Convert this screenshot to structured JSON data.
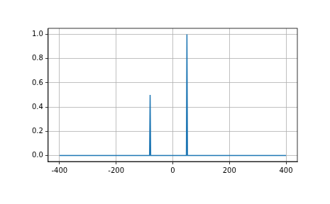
{
  "chart_data": {
    "type": "line",
    "x": [
      -400,
      -82,
      -80,
      -78,
      48,
      50,
      52,
      400
    ],
    "values": [
      0,
      0,
      0.5,
      0,
      0,
      1.0,
      0,
      0
    ],
    "color": "#1f77b4",
    "xlim": [
      -440,
      440
    ],
    "xticks": [
      -400,
      -200,
      0,
      200,
      400
    ],
    "ylim": [
      -0.05,
      1.05
    ],
    "yticks": [
      {
        "value": 0,
        "label": "0.0"
      },
      0.2,
      0.4,
      0.6,
      0.8,
      {
        "value": 1,
        "label": "1.0"
      }
    ],
    "grid": true
  }
}
